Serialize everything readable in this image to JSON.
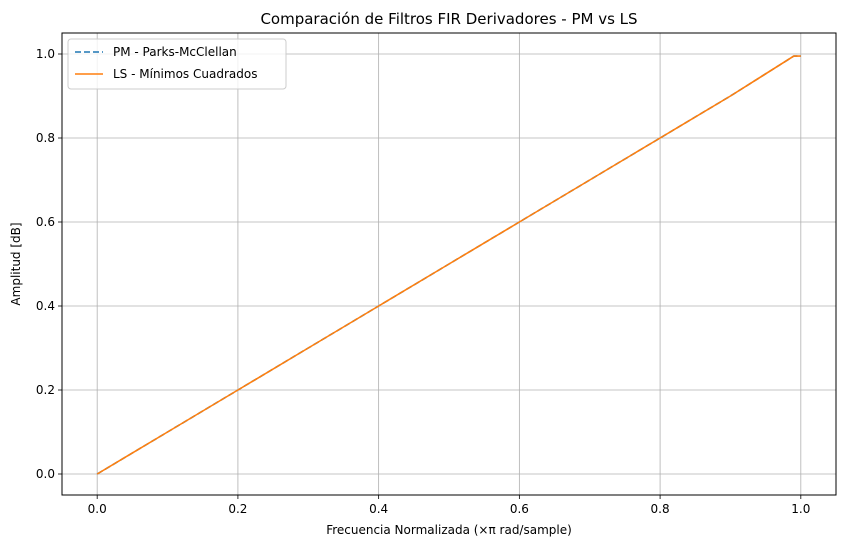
{
  "chart_data": {
    "type": "line",
    "title": "Comparación de Filtros FIR Derivadores - PM vs LS",
    "xlabel": "Frecuencia Normalizada (×π rad/sample)",
    "ylabel": "Amplitud [dB]",
    "xlim": [
      -0.05,
      1.05
    ],
    "ylim": [
      -0.05,
      1.05
    ],
    "xticks": [
      "0.0",
      "0.2",
      "0.4",
      "0.6",
      "0.8",
      "1.0"
    ],
    "yticks": [
      "0.0",
      "0.2",
      "0.4",
      "0.6",
      "0.8",
      "1.0"
    ],
    "grid": true,
    "legend_position": "upper-left",
    "series": [
      {
        "name": "PM - Parks-McClellan",
        "color": "#1f77b4",
        "style": "dashed",
        "x": [
          0.0,
          0.1,
          0.2,
          0.3,
          0.4,
          0.5,
          0.6,
          0.7,
          0.8,
          0.9,
          0.99,
          1.0
        ],
        "y": [
          0.0,
          0.1,
          0.2,
          0.3,
          0.4,
          0.5,
          0.6,
          0.7,
          0.8,
          0.9,
          0.995,
          0.995
        ]
      },
      {
        "name": "LS - Mínimos Cuadrados",
        "color": "#ff7f0e",
        "style": "solid",
        "x": [
          0.0,
          0.1,
          0.2,
          0.3,
          0.4,
          0.5,
          0.6,
          0.7,
          0.8,
          0.9,
          0.99,
          1.0
        ],
        "y": [
          0.0,
          0.1,
          0.2,
          0.3,
          0.4,
          0.5,
          0.6,
          0.7,
          0.8,
          0.9,
          0.995,
          0.995
        ]
      }
    ]
  }
}
